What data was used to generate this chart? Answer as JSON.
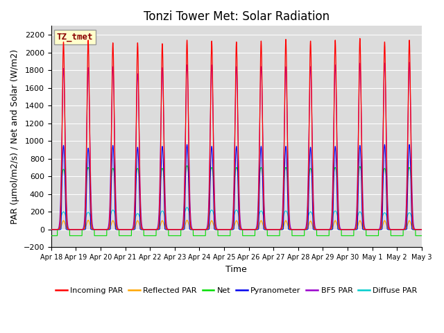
{
  "title": "Tonzi Tower Met: Solar Radiation",
  "ylabel": "PAR (μmol/m2/s) / Net and Solar (W/m2)",
  "xlabel": "Time",
  "ylim": [
    -200,
    2300
  ],
  "yticks": [
    -200,
    0,
    200,
    400,
    600,
    800,
    1000,
    1200,
    1400,
    1600,
    1800,
    2000,
    2200
  ],
  "num_days": 15,
  "xtick_labels": [
    "Apr 18",
    "Apr 19",
    "Apr 20",
    "Apr 21",
    "Apr 22",
    "Apr 23",
    "Apr 24",
    "Apr 25",
    "Apr 26",
    "Apr 27",
    "Apr 28",
    "Apr 29",
    "Apr 30",
    "May 1",
    "May 2",
    "May 3"
  ],
  "legend_entries": [
    {
      "label": "Incoming PAR",
      "color": "#ff0000"
    },
    {
      "label": "Reflected PAR",
      "color": "#ffa500"
    },
    {
      "label": "Net",
      "color": "#00dd00"
    },
    {
      "label": "Pyranometer",
      "color": "#0000ee"
    },
    {
      "label": "BF5 PAR",
      "color": "#9900cc"
    },
    {
      "label": "Diffuse PAR",
      "color": "#00cccc"
    }
  ],
  "tag_label": "TZ_tmet",
  "tag_color": "#8B0000",
  "tag_bg": "#ffffcc",
  "background_color": "#dcdcdc",
  "grid_color": "#ffffff",
  "title_fontsize": 12,
  "axis_fontsize": 8,
  "label_fontsize": 9,
  "incoming_peaks": [
    2120,
    2140,
    2110,
    2110,
    2100,
    2140,
    2130,
    2120,
    2130,
    2150,
    2130,
    2140,
    2160,
    2120,
    2140
  ],
  "pyrano_peaks": [
    950,
    920,
    950,
    930,
    940,
    960,
    940,
    940,
    940,
    940,
    930,
    940,
    950,
    960,
    960
  ],
  "bf5_peaks": [
    1820,
    1830,
    1840,
    1760,
    1830,
    1860,
    1860,
    1840,
    1840,
    1840,
    1840,
    1860,
    1880,
    1880,
    1890
  ],
  "net_peaks": [
    680,
    700,
    690,
    690,
    690,
    720,
    700,
    700,
    700,
    700,
    690,
    700,
    710,
    690,
    700
  ],
  "reflected_peaks": [
    100,
    105,
    100,
    100,
    100,
    105,
    100,
    100,
    100,
    100,
    95,
    100,
    100,
    100,
    100
  ],
  "diffuse_peaks": [
    200,
    195,
    220,
    180,
    210,
    250,
    220,
    220,
    210,
    210,
    200,
    210,
    200,
    190,
    190
  ]
}
